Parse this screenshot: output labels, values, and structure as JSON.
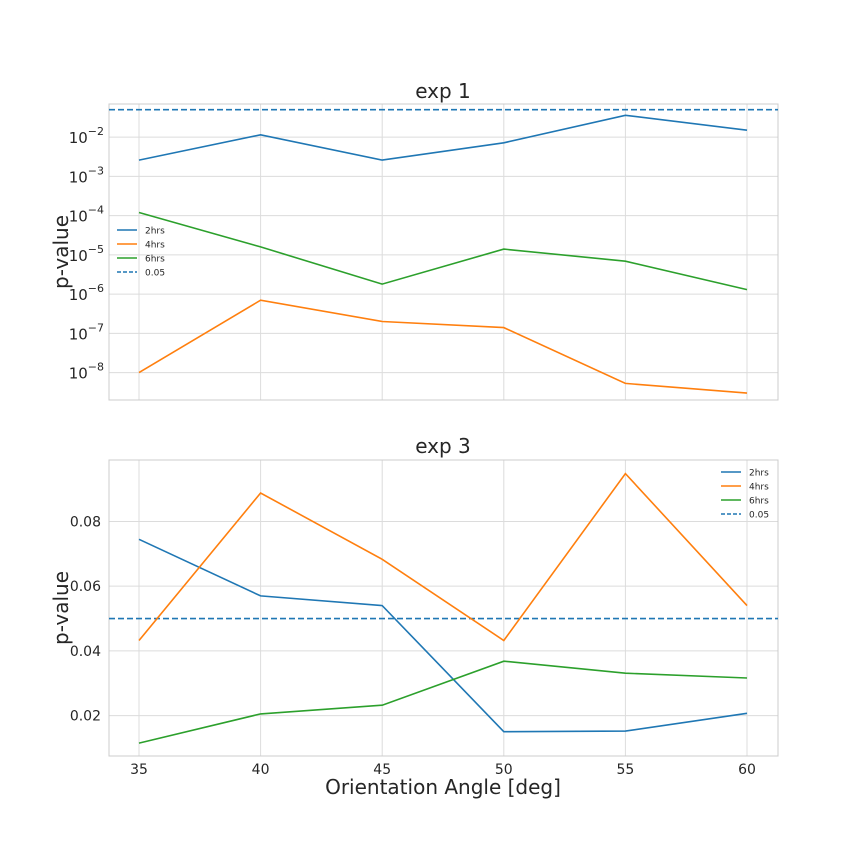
{
  "chart_data": [
    {
      "type": "line",
      "title": "exp 1",
      "ylabel": "p-value",
      "xlabel": "",
      "yscale": "log",
      "grid": true,
      "legend_position": "center-left",
      "x": [
        35,
        40,
        45,
        50,
        55,
        60
      ],
      "xticks": [
        35,
        40,
        45,
        50,
        55,
        60
      ],
      "ylim": [
        2e-09,
        0.07
      ],
      "yticks": [
        {
          "value": 0.01,
          "base": "10",
          "exp": "−2"
        },
        {
          "value": 0.001,
          "base": "10",
          "exp": "−3"
        },
        {
          "value": 0.0001,
          "base": "10",
          "exp": "−4"
        },
        {
          "value": 1e-05,
          "base": "10",
          "exp": "−5"
        },
        {
          "value": 1e-06,
          "base": "10",
          "exp": "−6"
        },
        {
          "value": 1e-07,
          "base": "10",
          "exp": "−7"
        },
        {
          "value": 1e-08,
          "base": "10",
          "exp": "−8"
        }
      ],
      "series": [
        {
          "name": "2hrs",
          "color": "#1f77b4",
          "values": [
            0.0026,
            0.0115,
            0.0026,
            0.0072,
            0.036,
            0.015
          ]
        },
        {
          "name": "4hrs",
          "color": "#ff7f0e",
          "values": [
            1e-08,
            7e-07,
            2e-07,
            1.4e-07,
            5.3e-09,
            3e-09
          ]
        },
        {
          "name": "6hrs",
          "color": "#2ca02c",
          "values": [
            0.00012,
            1.6e-05,
            1.8e-06,
            1.4e-05,
            6.9e-06,
            1.3e-06
          ]
        }
      ],
      "hline": {
        "name": "0.05",
        "value": 0.05,
        "color": "#1f77b4",
        "style": "dashed"
      }
    },
    {
      "type": "line",
      "title": "exp 3",
      "ylabel": "p-value",
      "xlabel": "Orientation Angle [deg]",
      "yscale": "linear",
      "grid": true,
      "legend_position": "top-right",
      "x": [
        35,
        40,
        45,
        50,
        55,
        60
      ],
      "xticks": [
        35,
        40,
        45,
        50,
        55,
        60
      ],
      "ylim": [
        0.0075,
        0.099
      ],
      "yticks": [
        {
          "value": 0.02,
          "label": "0.02"
        },
        {
          "value": 0.04,
          "label": "0.04"
        },
        {
          "value": 0.06,
          "label": "0.06"
        },
        {
          "value": 0.08,
          "label": "0.08"
        }
      ],
      "series": [
        {
          "name": "2hrs",
          "color": "#1f77b4",
          "values": [
            0.0745,
            0.057,
            0.054,
            0.015,
            0.0152,
            0.0207
          ]
        },
        {
          "name": "4hrs",
          "color": "#ff7f0e",
          "values": [
            0.0432,
            0.0888,
            0.0683,
            0.0432,
            0.0948,
            0.054
          ]
        },
        {
          "name": "6hrs",
          "color": "#2ca02c",
          "values": [
            0.0115,
            0.0205,
            0.0232,
            0.0368,
            0.0331,
            0.0316
          ]
        }
      ],
      "hline": {
        "name": "0.05",
        "value": 0.05,
        "color": "#1f77b4",
        "style": "dashed"
      }
    }
  ]
}
